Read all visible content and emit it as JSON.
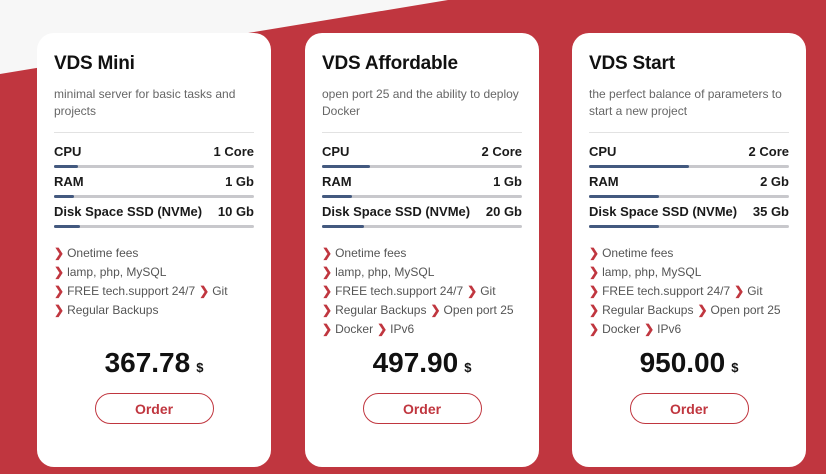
{
  "colors": {
    "accent": "#c0363f",
    "bar_fill": "#43597f",
    "bar_track": "#c8c8cc"
  },
  "plans": [
    {
      "name": "VDS Mini",
      "description": "minimal server for basic tasks and projects",
      "specs": [
        {
          "label": "CPU",
          "value": "1 Core",
          "level_pct": 12
        },
        {
          "label": "RAM",
          "value": "1 Gb",
          "level_pct": 10
        },
        {
          "label": "Disk Space SSD (NVMe)",
          "value": "10 Gb",
          "level_pct": 13
        }
      ],
      "feature_lines": [
        [
          "Onetime fees"
        ],
        [
          "lamp, php, MySQL"
        ],
        [
          "FREE tech.support 24/7",
          "Git"
        ],
        [
          "Regular Backups"
        ]
      ],
      "price": "367.78",
      "currency": "$",
      "order_label": "Order"
    },
    {
      "name": "VDS Affordable",
      "description": "open port 25 and the ability to deploy Docker",
      "specs": [
        {
          "label": "CPU",
          "value": "2 Core",
          "level_pct": 24
        },
        {
          "label": "RAM",
          "value": "1 Gb",
          "level_pct": 15
        },
        {
          "label": "Disk Space SSD (NVMe)",
          "value": "20 Gb",
          "level_pct": 21
        }
      ],
      "feature_lines": [
        [
          "Onetime fees"
        ],
        [
          "lamp, php, MySQL"
        ],
        [
          "FREE tech.support 24/7",
          "Git"
        ],
        [
          "Regular Backups",
          "Open port 25"
        ],
        [
          "Docker",
          "IPv6"
        ]
      ],
      "price": "497.90",
      "currency": "$",
      "order_label": "Order"
    },
    {
      "name": "VDS Start",
      "description": "the perfect balance of parameters to start a new project",
      "specs": [
        {
          "label": "CPU",
          "value": "2 Core",
          "level_pct": 50
        },
        {
          "label": "RAM",
          "value": "2 Gb",
          "level_pct": 35
        },
        {
          "label": "Disk Space SSD (NVMe)",
          "value": "35 Gb",
          "level_pct": 35
        }
      ],
      "feature_lines": [
        [
          "Onetime fees"
        ],
        [
          "lamp, php, MySQL"
        ],
        [
          "FREE tech.support 24/7",
          "Git"
        ],
        [
          "Regular Backups",
          "Open port 25"
        ],
        [
          "Docker",
          "IPv6"
        ]
      ],
      "price": "950.00",
      "currency": "$",
      "order_label": "Order"
    }
  ]
}
